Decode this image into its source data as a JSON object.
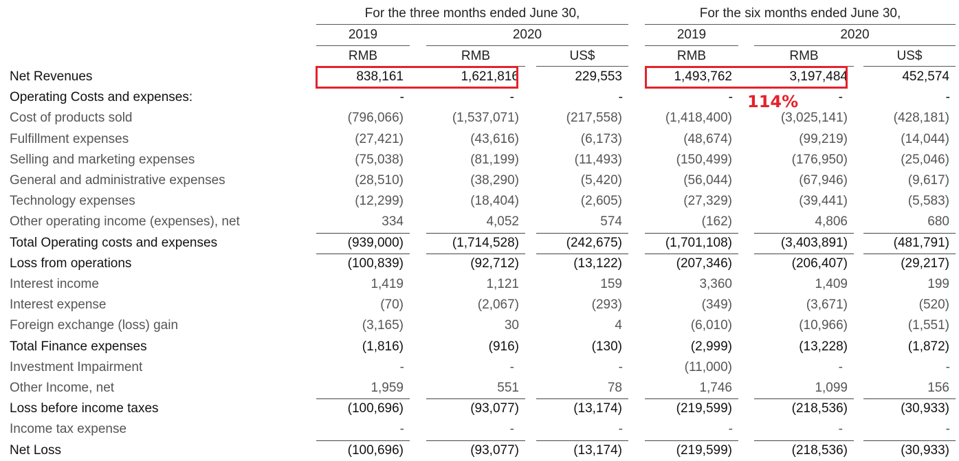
{
  "header": {
    "three_months": "For the three months ended June 30,",
    "six_months": "For the six months ended June 30,",
    "years": [
      "2019",
      "2020",
      "2019",
      "2020"
    ],
    "currencies": [
      "RMB",
      "RMB",
      "US$",
      "RMB",
      "RMB",
      "US$"
    ]
  },
  "annotation": {
    "growth": "114%",
    "highlight_color": "#e3222b"
  },
  "rows": [
    {
      "label": "Net Revenues",
      "bold": true,
      "rule": false,
      "values": [
        "838,161",
        "1,621,816",
        "229,553",
        "1,493,762",
        "3,197,484",
        "452,574"
      ]
    },
    {
      "label": "Operating Costs and expenses:",
      "bold": true,
      "rule": false,
      "values": [
        "-",
        "-",
        "-",
        "-",
        "-",
        "-"
      ]
    },
    {
      "label": "Cost of products sold",
      "bold": false,
      "rule": false,
      "values": [
        "(796,066)",
        "(1,537,071)",
        "(217,558)",
        "(1,418,400)",
        "(3,025,141)",
        "(428,181)"
      ]
    },
    {
      "label": "Fulfillment expenses",
      "bold": false,
      "rule": false,
      "values": [
        "(27,421)",
        "(43,616)",
        "(6,173)",
        "(48,674)",
        "(99,219)",
        "(14,044)"
      ]
    },
    {
      "label": "Selling and marketing expenses",
      "bold": false,
      "rule": false,
      "values": [
        "(75,038)",
        "(81,199)",
        "(11,493)",
        "(150,499)",
        "(176,950)",
        "(25,046)"
      ]
    },
    {
      "label": "General and administrative expenses",
      "bold": false,
      "rule": false,
      "values": [
        "(28,510)",
        "(38,290)",
        "(5,420)",
        "(56,044)",
        "(67,946)",
        "(9,617)"
      ]
    },
    {
      "label": "Technology expenses",
      "bold": false,
      "rule": false,
      "values": [
        "(12,299)",
        "(18,404)",
        "(2,605)",
        "(27,329)",
        "(39,441)",
        "(5,583)"
      ]
    },
    {
      "label": "Other operating income (expenses), net",
      "bold": false,
      "rule": false,
      "values": [
        "334",
        "4,052",
        "574",
        "(162)",
        "4,806",
        "680"
      ]
    },
    {
      "label": "Total Operating costs and expenses",
      "bold": true,
      "rule": true,
      "values": [
        "(939,000)",
        "(1,714,528)",
        "(242,675)",
        "(1,701,108)",
        "(3,403,891)",
        "(481,791)"
      ]
    },
    {
      "label": "Loss from operations",
      "bold": true,
      "rule": true,
      "values": [
        "(100,839)",
        "(92,712)",
        "(13,122)",
        "(207,346)",
        "(206,407)",
        "(29,217)"
      ]
    },
    {
      "label": "Interest income",
      "bold": false,
      "rule": false,
      "values": [
        "1,419",
        "1,121",
        "159",
        "3,360",
        "1,409",
        "199"
      ]
    },
    {
      "label": "Interest expense",
      "bold": false,
      "rule": false,
      "values": [
        "(70)",
        "(2,067)",
        "(293)",
        "(349)",
        "(3,671)",
        "(520)"
      ]
    },
    {
      "label": "Foreign exchange (loss) gain",
      "bold": false,
      "rule": false,
      "values": [
        "(3,165)",
        "30",
        "4",
        "(6,010)",
        "(10,966)",
        "(1,551)"
      ]
    },
    {
      "label": "Total Finance expenses",
      "bold": true,
      "rule": false,
      "values": [
        "(1,816)",
        "(916)",
        "(130)",
        "(2,999)",
        "(13,228)",
        "(1,872)"
      ]
    },
    {
      "label": "Investment Impairment",
      "bold": false,
      "rule": false,
      "values": [
        "-",
        "-",
        "-",
        "(11,000)",
        "-",
        "-"
      ]
    },
    {
      "label": "Other Income, net",
      "bold": false,
      "rule": false,
      "values": [
        "1,959",
        "551",
        "78",
        "1,746",
        "1,099",
        "156"
      ]
    },
    {
      "label": "Loss before income taxes",
      "bold": true,
      "rule": true,
      "values": [
        "(100,696)",
        "(93,077)",
        "(13,174)",
        "(219,599)",
        "(218,536)",
        "(30,933)"
      ]
    },
    {
      "label": "Income tax expense",
      "bold": false,
      "rule": false,
      "values": [
        "-",
        "-",
        "-",
        "-",
        "-",
        "-"
      ]
    },
    {
      "label": "Net Loss",
      "bold": true,
      "rule": true,
      "values": [
        "(100,696)",
        "(93,077)",
        "(13,174)",
        "(219,599)",
        "(218,536)",
        "(30,933)"
      ]
    }
  ]
}
